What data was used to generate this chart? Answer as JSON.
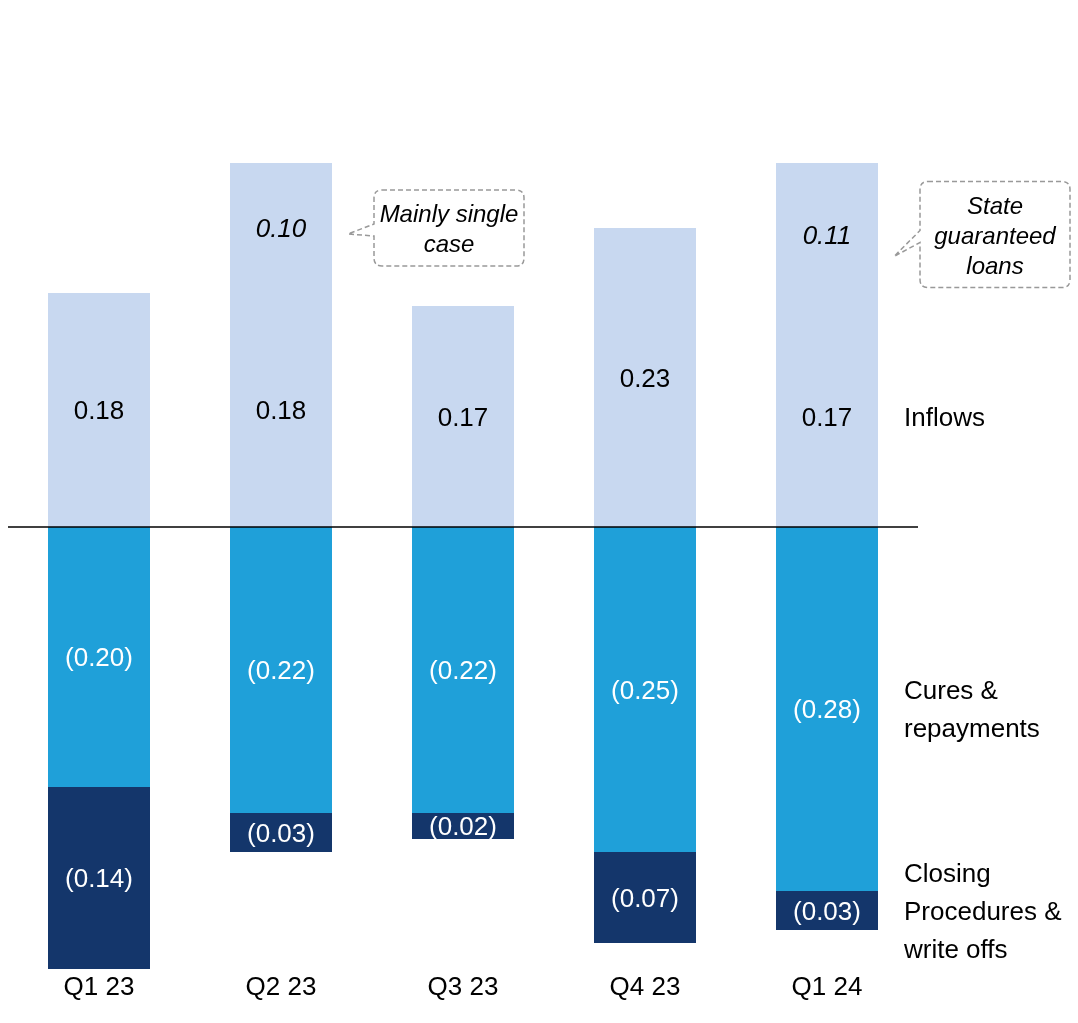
{
  "chart_data": {
    "type": "bar",
    "stacked": true,
    "categories": [
      "Q1 23",
      "Q2 23",
      "Q3 23",
      "Q4 23",
      "Q1 24"
    ],
    "series": [
      {
        "name": "Inflows",
        "color": "#c8d8f0",
        "values": [
          0.18,
          0.18,
          0.17,
          0.23,
          0.17
        ],
        "value_labels": [
          "0.18",
          "0.18",
          "0.17",
          "0.23",
          "0.17"
        ]
      },
      {
        "color": "#c8d8f0",
        "values": [
          null,
          0.1,
          null,
          null,
          0.11
        ],
        "value_labels": [
          null,
          "0.10",
          null,
          null,
          "0.11"
        ]
      },
      {
        "name": "Cures & repayments",
        "color": "#1fa0d9",
        "values": [
          -0.2,
          -0.22,
          -0.22,
          -0.25,
          -0.28
        ],
        "value_labels": [
          "(0.20)",
          "(0.22)",
          "(0.22)",
          "(0.25)",
          "(0.28)"
        ]
      },
      {
        "name": "Closing Procedures & write offs",
        "color": "#14366b",
        "values": [
          -0.14,
          -0.03,
          -0.02,
          -0.07,
          -0.03
        ],
        "value_labels": [
          "(0.14)",
          "(0.03)",
          "(0.02)",
          "(0.07)",
          "(0.03)"
        ]
      }
    ],
    "annotations": [
      "Mainly single case",
      "State guaranteed loans"
    ],
    "grid": false,
    "legend": false
  }
}
